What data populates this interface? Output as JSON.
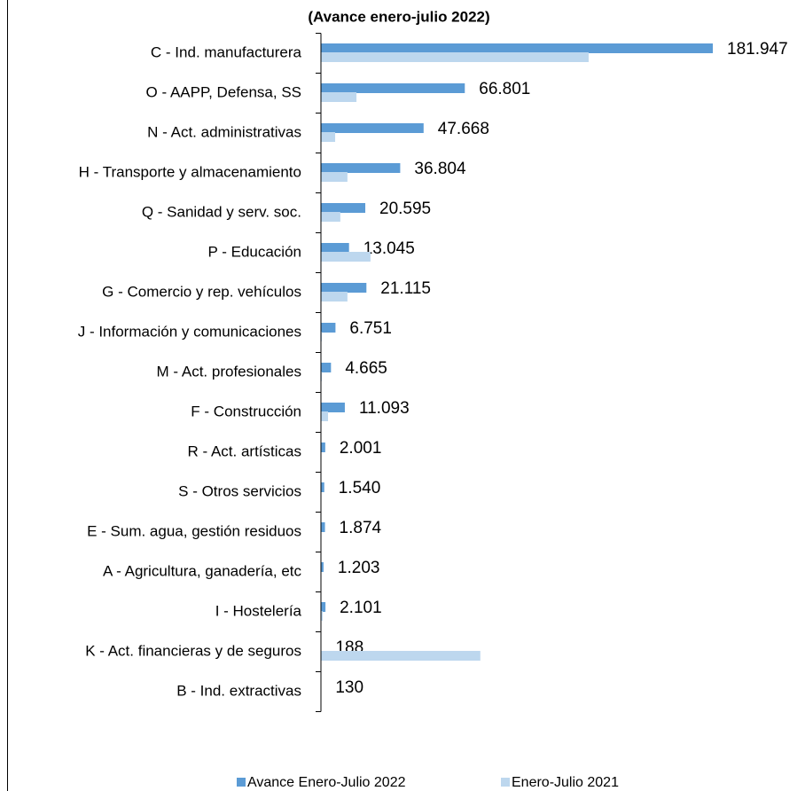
{
  "chart_data": {
    "type": "bar",
    "orientation": "horizontal",
    "title": "(Avance enero-julio 2022)",
    "categories": [
      "C - Ind. manufacturera",
      "O - AAPP, Defensa, SS",
      "N - Act. administrativas",
      "H - Transporte y almacenamiento",
      "Q - Sanidad y serv. soc.",
      "P - Educación",
      "G - Comercio y rep. vehículos",
      "J - Información y comunicaciones",
      "M - Act. profesionales",
      "F - Construcción",
      "R - Act. artísticas",
      "S - Otros servicios",
      "E - Sum. agua, gestión residuos",
      "A - Agricultura, ganadería, etc",
      "I - Hostelería",
      "K - Act. financieras y de seguros",
      "B - Ind. extractivas"
    ],
    "series": [
      {
        "name": "Avance Enero-Julio 2022",
        "color": "#5b9bd5",
        "values": [
          181947,
          66801,
          47668,
          36804,
          20595,
          13045,
          21115,
          6751,
          4665,
          11093,
          2001,
          1540,
          1874,
          1203,
          2101,
          188,
          130
        ],
        "value_labels": [
          "181.947",
          "66.801",
          "47.668",
          "36.804",
          "20.595",
          "13.045",
          "21.115",
          "6.751",
          "4.665",
          "11.093",
          "2.001",
          "1.540",
          "1.874",
          "1.203",
          "2.101",
          "188",
          "130"
        ]
      },
      {
        "name": "Enero-Julio 2021",
        "color": "#bdd7ee",
        "values": [
          124300,
          16500,
          6600,
          12300,
          9000,
          23000,
          12300,
          400,
          400,
          3300,
          200,
          200,
          200,
          200,
          800,
          74000,
          0
        ]
      }
    ],
    "legend": "bottom"
  }
}
